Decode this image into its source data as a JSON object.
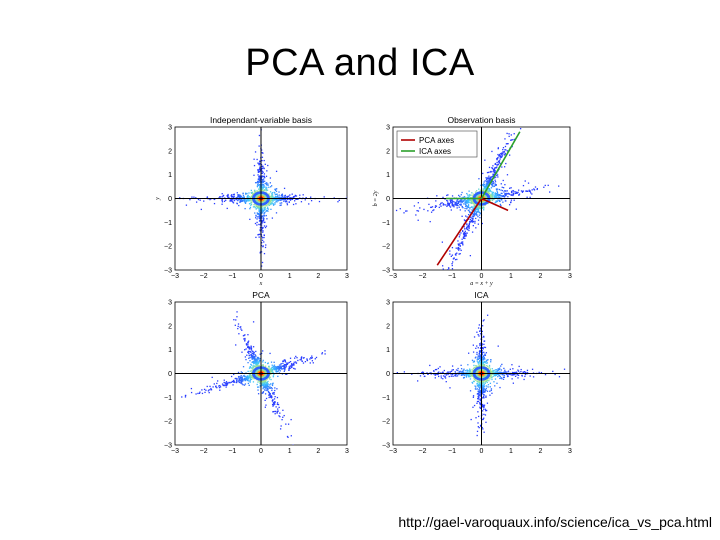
{
  "slide": {
    "title": "PCA and ICA",
    "source_url": "http://gael-varoquaux.info/science/ica_vs_pca.html"
  },
  "colors": {
    "axis_black": "#000000",
    "pca_axis": "#b00000",
    "ica_axis": "#2ca02c",
    "density_low": "#2233ff",
    "density_high": "#ff0000"
  },
  "chart_data": [
    {
      "type": "scatter",
      "title": "Independant-variable basis",
      "xlabel": "x",
      "ylabel": "y",
      "xlim": [
        -3,
        3
      ],
      "ylim": [
        -3,
        3
      ],
      "xticks": [
        "−3",
        "−2",
        "−1",
        "0",
        "1",
        "2",
        "3"
      ],
      "yticks": [
        "3",
        "2",
        "1",
        "0",
        "−1",
        "−2",
        "−3"
      ],
      "distribution": "cross-aligned-with-axes",
      "legend": null
    },
    {
      "type": "scatter",
      "title": "Observation basis",
      "xlabel": "a = x + y",
      "ylabel": "b = 2y",
      "xlim": [
        -3,
        3
      ],
      "ylim": [
        -3,
        3
      ],
      "xticks": [
        "−3",
        "−2",
        "−1",
        "0",
        "1",
        "2",
        "3"
      ],
      "yticks": [
        "3",
        "2",
        "1",
        "0",
        "−1",
        "−2",
        "−3"
      ],
      "distribution": "skewed-cross",
      "legend": {
        "position": "top-left",
        "entries": [
          {
            "label": "PCA axes",
            "color": "#b00000"
          },
          {
            "label": "ICA axes",
            "color": "#2ca02c"
          }
        ]
      }
    },
    {
      "type": "scatter",
      "title": "PCA",
      "xlabel": "",
      "ylabel": "",
      "xlim": [
        -3,
        3
      ],
      "ylim": [
        -3,
        3
      ],
      "xticks": [
        "−3",
        "−2",
        "−1",
        "0",
        "1",
        "2",
        "3"
      ],
      "yticks": [
        "3",
        "2",
        "1",
        "0",
        "−1",
        "−2",
        "−3"
      ],
      "distribution": "rotated-cross",
      "legend": null
    },
    {
      "type": "scatter",
      "title": "ICA",
      "xlabel": "",
      "ylabel": "",
      "xlim": [
        -3,
        3
      ],
      "ylim": [
        -3,
        3
      ],
      "xticks": [
        "−3",
        "−2",
        "−1",
        "0",
        "1",
        "2",
        "3"
      ],
      "yticks": [
        "3",
        "2",
        "1",
        "0",
        "−1",
        "−2",
        "−3"
      ],
      "distribution": "cross-aligned-with-axes",
      "legend": null
    }
  ]
}
